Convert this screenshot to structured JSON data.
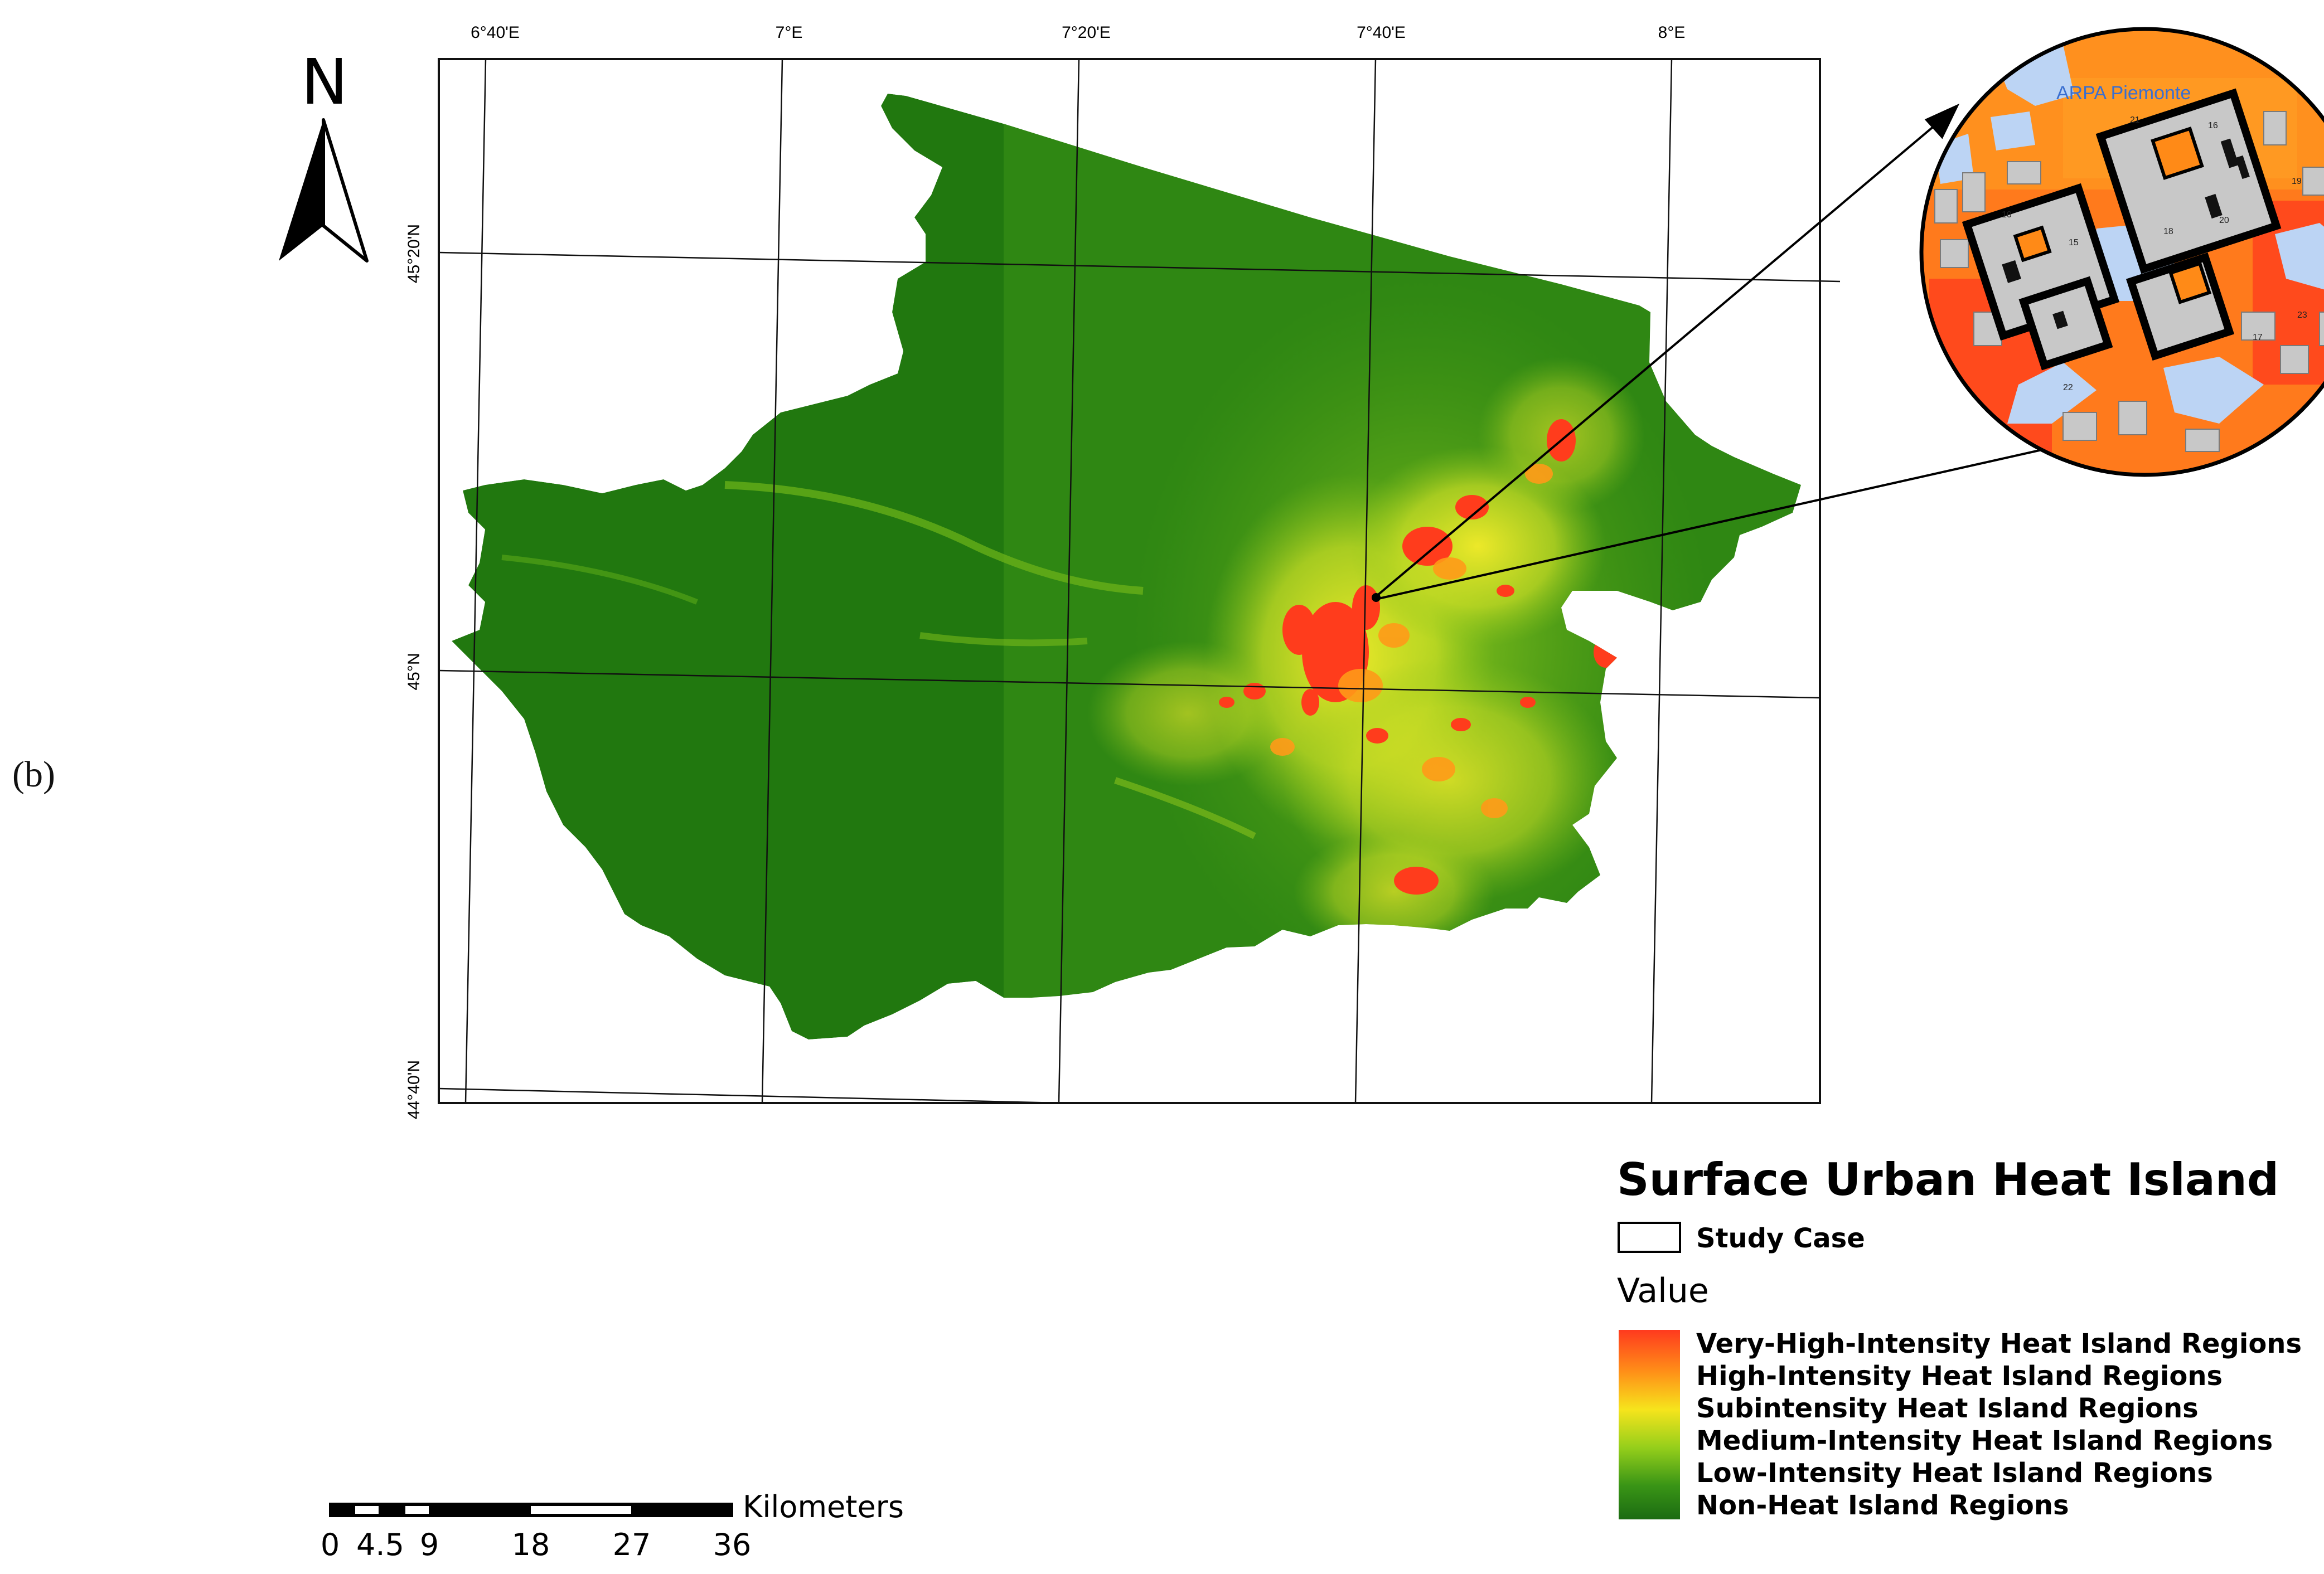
{
  "panel_label": "(b)",
  "north_arrow": {
    "letter": "N",
    "icon": "north-arrow-icon"
  },
  "graticule": {
    "top_labels": [
      "6°40'E",
      "7°E",
      "7°20'E",
      "7°40'E",
      "8°E"
    ],
    "left_labels": [
      "45°20'N",
      "45°N",
      "44°40'N"
    ]
  },
  "inset": {
    "label": "ARPA Piemonte",
    "building_numbers": [
      "21",
      "16",
      "18",
      "20",
      "15",
      "10",
      "19",
      "17",
      "22",
      "23"
    ]
  },
  "legend": {
    "title": "Surface Urban Heat Island",
    "study_case_label": "Study Case",
    "value_heading": "Value",
    "classes": [
      "Very-High-Intensity Heat Island Regions",
      "High-Intensity Heat Island Regions",
      "Subintensity Heat Island Regions",
      "Medium-Intensity Heat Island Regions",
      "Low-Intensity Heat Island Regions",
      "Non-Heat Island Regions"
    ],
    "ramp_colors": [
      "#ff3a1e",
      "#ff9a18",
      "#f3ea1c",
      "#8fcc1a",
      "#3c9a16",
      "#1b6d12"
    ]
  },
  "scale_bar": {
    "unit": "Kilometers",
    "ticks": [
      "0",
      "4.5",
      "9",
      "18",
      "27",
      "36"
    ]
  },
  "colors": {
    "non_heat": "#21780f",
    "low": "#3f9418",
    "medium": "#a9d51f",
    "sub": "#f2e81a",
    "high": "#ff8a17",
    "very_high": "#ff3c1c",
    "inset_water": "#bcd4f4",
    "inset_building": "#c8c8c8"
  }
}
